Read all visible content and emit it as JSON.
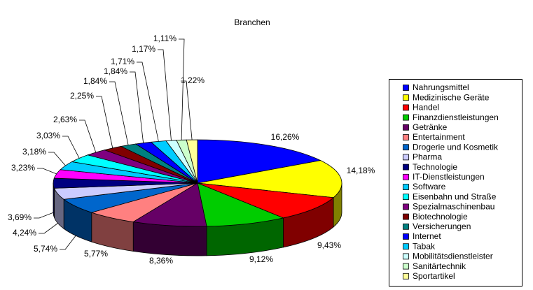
{
  "chart_data": {
    "type": "pie3d",
    "title": "Branchen",
    "categories": [
      "Nahrungsmittel",
      "Medizinische Geräte",
      "Handel",
      "Finanzdienstleistungen",
      "Getränke",
      "Entertainment",
      "Drogerie und Kosmetik",
      "Pharma",
      "Technologie",
      "IT-Dienstleistungen",
      "Software",
      "Eisenbahn und Straße",
      "Spezialmaschinenbau",
      "Biotechnologie",
      "Versicherungen",
      "Internet",
      "Tabak",
      "Mobilitätsdienstleister",
      "Sanitärtechnik",
      "Sportartikel"
    ],
    "values": [
      16.26,
      14.18,
      9.43,
      9.12,
      8.36,
      5.77,
      5.74,
      4.24,
      3.69,
      3.23,
      3.18,
      3.03,
      2.63,
      2.25,
      1.84,
      1.84,
      1.71,
      1.17,
      1.11,
      1.22
    ],
    "value_labels": [
      "16,26%",
      "14,18%",
      "9,43%",
      "9,12%",
      "8,36%",
      "5,77%",
      "5,74%",
      "4,24%",
      "3,69%",
      "3,23%",
      "3,18%",
      "3,03%",
      "2,63%",
      "2,25%",
      "1,84%",
      "1,84%",
      "1,71%",
      "1,17%",
      "1,11%",
      "1,22%"
    ],
    "colors": [
      "#0000ff",
      "#ffff00",
      "#ff0000",
      "#00cc00",
      "#660066",
      "#ff8080",
      "#0066cc",
      "#ccccff",
      "#000080",
      "#ff00ff",
      "#00ccff",
      "#00ffff",
      "#800080",
      "#800000",
      "#008080",
      "#0000ff",
      "#00ccff",
      "#ccffff",
      "#ccffcc",
      "#ffff99"
    ],
    "legend": "right"
  }
}
